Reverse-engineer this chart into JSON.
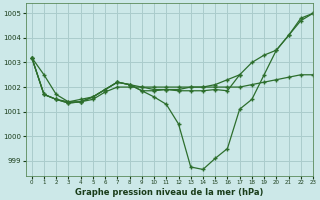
{
  "title": "Graphe pression niveau de la mer (hPa)",
  "background_color": "#cce8e8",
  "grid_color": "#aacccc",
  "line_color": "#2d6e2d",
  "xlim": [
    -0.5,
    23
  ],
  "ylim": [
    998.4,
    1005.4
  ],
  "yticks": [
    999,
    1000,
    1001,
    1002,
    1003,
    1004,
    1005
  ],
  "xticks": [
    0,
    1,
    2,
    3,
    4,
    5,
    6,
    7,
    8,
    9,
    10,
    11,
    12,
    13,
    14,
    15,
    16,
    17,
    18,
    19,
    20,
    21,
    22,
    23
  ],
  "series": [
    {
      "x": [
        0,
        1,
        2,
        3,
        4,
        5,
        6,
        7,
        8,
        9,
        10,
        11,
        12,
        13,
        14,
        15,
        16,
        17,
        18,
        19,
        20,
        21,
        22,
        23
      ],
      "y": [
        1003.2,
        1002.5,
        1001.7,
        1001.4,
        1001.4,
        1001.5,
        1001.8,
        1002.0,
        1002.0,
        1002.0,
        1002.0,
        1002.0,
        1002.0,
        1002.0,
        1002.0,
        1002.0,
        1002.0,
        1002.0,
        1002.1,
        1002.2,
        1002.3,
        1002.4,
        1002.5,
        1002.5
      ]
    },
    {
      "x": [
        0,
        1,
        2,
        3,
        4,
        5,
        6,
        7,
        8,
        9,
        10,
        11,
        12,
        13,
        14,
        15,
        16,
        17,
        18,
        19,
        20,
        21,
        22,
        23
      ],
      "y": [
        1003.2,
        1001.7,
        1001.5,
        1001.4,
        1001.5,
        1001.6,
        1001.9,
        1002.2,
        1002.1,
        1002.0,
        1001.9,
        1001.9,
        1001.9,
        1002.0,
        1002.0,
        1002.1,
        1002.3,
        1002.5,
        1003.0,
        1003.3,
        1003.5,
        1004.1,
        1004.7,
        1005.0
      ]
    },
    {
      "x": [
        0,
        1,
        2,
        3,
        4,
        5,
        6,
        7,
        8,
        9,
        10,
        11,
        12,
        13,
        14,
        15,
        16,
        17,
        18,
        19,
        20,
        21,
        22,
        23
      ],
      "y": [
        1003.2,
        1001.7,
        1001.5,
        1001.35,
        1001.4,
        1001.6,
        1001.9,
        1002.2,
        1002.1,
        1001.85,
        1001.6,
        1001.3,
        1000.5,
        998.75,
        998.65,
        999.1,
        999.5,
        1001.1,
        1001.5,
        1002.5,
        1003.5,
        1004.1,
        1004.8,
        1005.0
      ]
    },
    {
      "x": [
        0,
        1,
        2,
        3,
        4,
        5,
        6,
        7,
        8,
        9,
        10,
        11,
        12,
        13,
        14,
        15,
        16,
        17
      ],
      "y": [
        1003.2,
        1001.7,
        1001.5,
        1001.35,
        1001.4,
        1001.6,
        1001.9,
        1002.2,
        1002.1,
        1001.85,
        1001.85,
        1001.9,
        1001.85,
        1001.85,
        1001.85,
        1001.9,
        1001.85,
        1002.5
      ]
    }
  ]
}
